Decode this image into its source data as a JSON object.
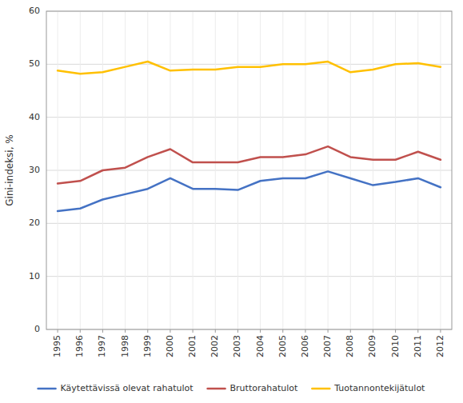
{
  "chart_data": {
    "type": "line",
    "y_label": "Gini-indeksi, %",
    "x": [
      1995,
      1996,
      1997,
      1998,
      1999,
      2000,
      2001,
      2002,
      2003,
      2004,
      2005,
      2006,
      2007,
      2008,
      2009,
      2010,
      2011,
      2012
    ],
    "xlim": [
      1994.5,
      2012.5
    ],
    "xticks": [
      1995,
      1996,
      1997,
      1998,
      1999,
      2000,
      2001,
      2002,
      2003,
      2004,
      2005,
      2006,
      2007,
      2008,
      2009,
      2010,
      2011,
      2012
    ],
    "ylim": [
      0,
      60
    ],
    "yticks": [
      0,
      10,
      20,
      30,
      40,
      50,
      60
    ],
    "grid": true,
    "legend": "bottom",
    "series": [
      {
        "name": "Käytettävissä olevat rahatulot",
        "color": "#4472C4",
        "values": [
          22.3,
          22.8,
          24.5,
          25.5,
          26.5,
          28.5,
          26.5,
          26.5,
          26.3,
          28.0,
          28.5,
          28.5,
          29.8,
          28.5,
          27.2,
          27.8,
          28.5,
          26.8
        ]
      },
      {
        "name": "Bruttorahatulot",
        "color": "#C0504D",
        "values": [
          27.5,
          28.0,
          30.0,
          30.5,
          32.5,
          34.0,
          31.5,
          31.5,
          31.5,
          32.5,
          32.5,
          33.0,
          34.5,
          32.5,
          32.0,
          32.0,
          33.5,
          32.0
        ]
      },
      {
        "name": "Tuotannontekijätulot",
        "color": "#FFC000",
        "values": [
          48.8,
          48.2,
          48.5,
          49.5,
          50.5,
          48.8,
          49.0,
          49.0,
          49.5,
          49.5,
          50.0,
          50.0,
          50.5,
          48.5,
          49.0,
          50.0,
          50.2,
          49.5
        ]
      }
    ]
  }
}
